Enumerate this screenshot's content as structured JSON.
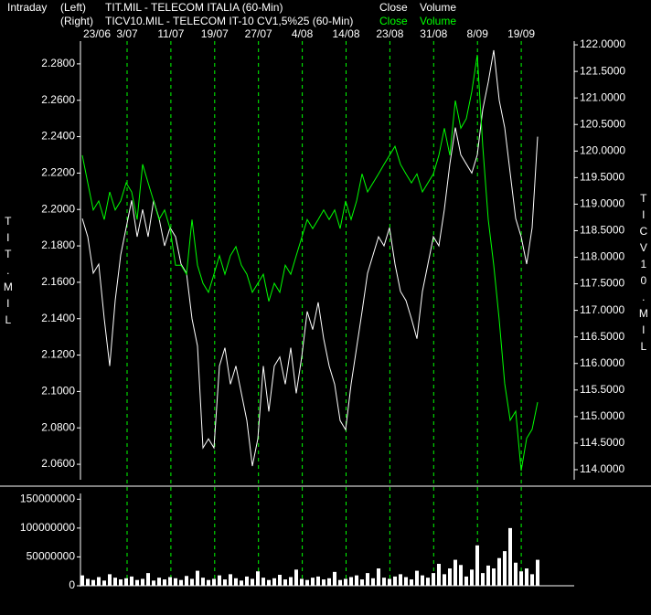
{
  "chart_data": [
    {
      "type": "line",
      "header": "Intraday",
      "xticks": [
        "23/06",
        "3/07",
        "11/07",
        "19/07",
        "27/07",
        "4/08",
        "14/08",
        "23/08",
        "31/08",
        "8/09",
        "19/09"
      ],
      "ylabel": "TIT.MIL",
      "y2label": "TICV10.MIL",
      "ylim": [
        2.0515,
        2.2925
      ],
      "yticks": [
        {
          "value": 2.06,
          "label": "2.0600"
        },
        {
          "value": 2.08,
          "label": "2.0800"
        },
        {
          "value": 2.1,
          "label": "2.1000"
        },
        {
          "value": 2.12,
          "label": "2.1200"
        },
        {
          "value": 2.14,
          "label": "2.1400"
        },
        {
          "value": 2.16,
          "label": "2.1600"
        },
        {
          "value": 2.18,
          "label": "2.1800"
        },
        {
          "value": 2.2,
          "label": "2.2000"
        },
        {
          "value": 2.22,
          "label": "2.2200"
        },
        {
          "value": 2.24,
          "label": "2.2400"
        },
        {
          "value": 2.26,
          "label": "2.2600"
        },
        {
          "value": 2.28,
          "label": "2.2800"
        }
      ],
      "y2lim": [
        113.81,
        122.07
      ],
      "y2ticks": [
        {
          "value": 114,
          "label": "114.0000"
        },
        {
          "value": 114.5,
          "label": "114.5000"
        },
        {
          "value": 115,
          "label": "115.0000"
        },
        {
          "value": 115.5,
          "label": "115.5000"
        },
        {
          "value": 116,
          "label": "116.0000"
        },
        {
          "value": 116.5,
          "label": "116.5000"
        },
        {
          "value": 117,
          "label": "117.0000"
        },
        {
          "value": 117.5,
          "label": "117.5000"
        },
        {
          "value": 118,
          "label": "118.0000"
        },
        {
          "value": 118.5,
          "label": "118.5000"
        },
        {
          "value": 119,
          "label": "119.0000"
        },
        {
          "value": 119.5,
          "label": "119.5000"
        },
        {
          "value": 120,
          "label": "120.0000"
        },
        {
          "value": 120.5,
          "label": "120.5000"
        },
        {
          "value": 121,
          "label": "121.0000"
        },
        {
          "value": 121.5,
          "label": "121.5000"
        },
        {
          "value": 122,
          "label": "122.0000"
        }
      ],
      "series": [
        {
          "side": "(Left)",
          "instrument": "TIT.MIL - TELECOM ITALIA  (60-Min)",
          "name": "Close",
          "volume_label": "Volume",
          "color": "#ffffff",
          "values": [
            2.195,
            2.185,
            2.165,
            2.17,
            2.14,
            2.114,
            2.15,
            2.175,
            2.19,
            2.205,
            2.185,
            2.2,
            2.185,
            2.205,
            2.195,
            2.18,
            2.19,
            2.185,
            2.17,
            2.165,
            2.14,
            2.125,
            2.069,
            2.074,
            2.069,
            2.114,
            2.124,
            2.104,
            2.114,
            2.099,
            2.084,
            2.059,
            2.074,
            2.114,
            2.089,
            2.114,
            2.119,
            2.104,
            2.124,
            2.099,
            2.119,
            2.144,
            2.134,
            2.149,
            2.129,
            2.114,
            2.104,
            2.084,
            2.079,
            2.104,
            2.124,
            2.144,
            2.165,
            2.175,
            2.185,
            2.18,
            2.19,
            2.17,
            2.155,
            2.15,
            2.14,
            2.129,
            2.155,
            2.17,
            2.185,
            2.18,
            2.2,
            2.225,
            2.245,
            2.23,
            2.225,
            2.22,
            2.23,
            2.255,
            2.27,
            2.2875,
            2.26,
            2.245,
            2.22,
            2.195,
            2.185,
            2.17,
            2.19,
            2.24
          ]
        },
        {
          "side": "(Right)",
          "instrument": "TICV10.MIL - TELECOM IT-10 CV1,5%25  (60-Min)",
          "name": "Close",
          "volume_label": "Volume",
          "color": "#00ff00",
          "axis": "y2",
          "values": [
            119.92,
            119.4,
            118.89,
            119.06,
            118.71,
            119.23,
            118.89,
            119.06,
            119.4,
            119.23,
            118.71,
            119.75,
            119.4,
            119.06,
            118.71,
            118.89,
            118.54,
            117.85,
            117.85,
            117.68,
            118.71,
            117.85,
            117.51,
            117.34,
            117.68,
            118.03,
            117.68,
            118.03,
            118.2,
            117.85,
            117.68,
            117.34,
            117.51,
            117.68,
            117.17,
            117.51,
            117.34,
            117.85,
            117.68,
            118.03,
            118.37,
            118.71,
            118.54,
            118.71,
            118.89,
            118.71,
            118.89,
            118.54,
            119.06,
            118.71,
            119.06,
            119.57,
            119.23,
            119.4,
            119.57,
            119.75,
            119.92,
            120.09,
            119.75,
            119.57,
            119.4,
            119.57,
            119.23,
            119.4,
            119.57,
            119.92,
            120.43,
            119.92,
            120.95,
            120.43,
            120.61,
            121.12,
            121.81,
            120.09,
            118.71,
            117.85,
            116.82,
            115.62,
            114.93,
            115.1,
            113.98,
            114.59,
            114.76,
            115.27
          ]
        }
      ]
    },
    {
      "type": "bar",
      "color": "#ffffff",
      "ylim": [
        0,
        160000000
      ],
      "yticks": [
        0,
        50000000,
        100000000,
        150000000
      ],
      "values": [
        18000000,
        12000000,
        10000000,
        15000000,
        9000000,
        20000000,
        14000000,
        11000000,
        13000000,
        16000000,
        10000000,
        12000000,
        22000000,
        9000000,
        14000000,
        11000000,
        15000000,
        13000000,
        10000000,
        17000000,
        12000000,
        26000000,
        14000000,
        10000000,
        12000000,
        18000000,
        11000000,
        20000000,
        13000000,
        9000000,
        16000000,
        12000000,
        25000000,
        14000000,
        10000000,
        13000000,
        19000000,
        11000000,
        15000000,
        28000000,
        12000000,
        10000000,
        14000000,
        16000000,
        11000000,
        13000000,
        24000000,
        10000000,
        12000000,
        15000000,
        18000000,
        11000000,
        22000000,
        13000000,
        30000000,
        14000000,
        12000000,
        16000000,
        20000000,
        15000000,
        11000000,
        26000000,
        18000000,
        14000000,
        22000000,
        38000000,
        20000000,
        30000000,
        45000000,
        36000000,
        16000000,
        28000000,
        70000000,
        22000000,
        35000000,
        30000000,
        48000000,
        60000000,
        100000000,
        40000000,
        25000000,
        30000000,
        20000000,
        45000000
      ]
    }
  ]
}
